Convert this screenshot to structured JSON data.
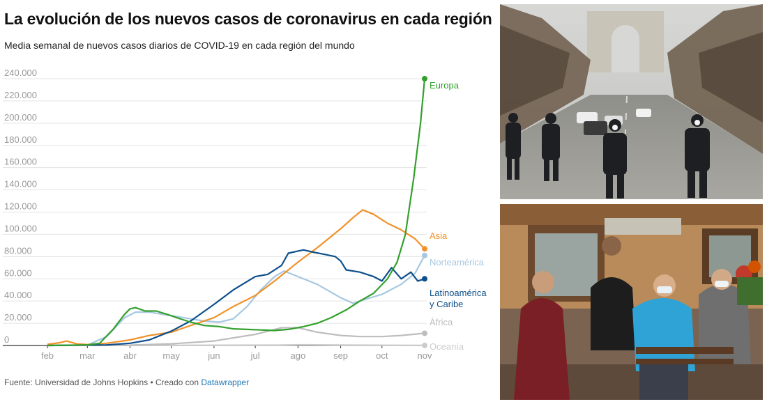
{
  "title": "La evolución de los nuevos casos de coronavirus en cada región",
  "subtitle": "Media semanal de nuevos casos diarios de COVID-19 en cada región del mundo",
  "footer": {
    "source": "Fuente: Universidad de Johns Hopkins • Creado con ",
    "tool": "Datawrapper"
  },
  "chart_data": {
    "type": "line",
    "xlabel": "",
    "ylabel": "",
    "ylim": [
      0,
      240000
    ],
    "yticks": [
      0,
      20000,
      40000,
      60000,
      80000,
      100000,
      120000,
      140000,
      160000,
      180000,
      200000,
      220000,
      240000
    ],
    "ytick_labels": [
      "0",
      "20.000",
      "40.000",
      "60.000",
      "80.000",
      "100.000",
      "120.000",
      "140.000",
      "160.000",
      "180.000",
      "200.000",
      "220.000",
      "240.000"
    ],
    "x_range": [
      "2020-02-01",
      "2020-11-01"
    ],
    "x_ticks": [
      {
        "date": "2020-02-01",
        "label": "feb"
      },
      {
        "date": "2020-03-01",
        "label": "mar"
      },
      {
        "date": "2020-04-01",
        "label": "abr"
      },
      {
        "date": "2020-05-01",
        "label": "may"
      },
      {
        "date": "2020-06-01",
        "label": "jun"
      },
      {
        "date": "2020-07-01",
        "label": "jul"
      },
      {
        "date": "2020-08-01",
        "label": "ago"
      },
      {
        "date": "2020-09-01",
        "label": "sep"
      },
      {
        "date": "2020-10-01",
        "label": "oct"
      },
      {
        "date": "2020-11-01",
        "label": "nov"
      }
    ],
    "grid": true,
    "legend": "direct labels at line ends (right)",
    "series": [
      {
        "name": "Europa",
        "color": "#33a02c",
        "label_lines": [
          "Europa"
        ],
        "points": [
          [
            "2020-02-01",
            0
          ],
          [
            "2020-03-01",
            500
          ],
          [
            "2020-03-10",
            2000
          ],
          [
            "2020-03-20",
            15000
          ],
          [
            "2020-03-28",
            28000
          ],
          [
            "2020-04-01",
            33000
          ],
          [
            "2020-04-05",
            34000
          ],
          [
            "2020-04-12",
            31000
          ],
          [
            "2020-04-20",
            31000
          ],
          [
            "2020-04-28",
            28000
          ],
          [
            "2020-05-05",
            25000
          ],
          [
            "2020-05-15",
            21000
          ],
          [
            "2020-05-25",
            18000
          ],
          [
            "2020-06-05",
            17000
          ],
          [
            "2020-06-15",
            15000
          ],
          [
            "2020-06-25",
            14500
          ],
          [
            "2020-07-05",
            14000
          ],
          [
            "2020-07-15",
            13500
          ],
          [
            "2020-07-25",
            14500
          ],
          [
            "2020-08-05",
            17000
          ],
          [
            "2020-08-15",
            20000
          ],
          [
            "2020-08-25",
            25000
          ],
          [
            "2020-09-05",
            32000
          ],
          [
            "2020-09-15",
            40000
          ],
          [
            "2020-09-25",
            47000
          ],
          [
            "2020-10-05",
            60000
          ],
          [
            "2020-10-12",
            75000
          ],
          [
            "2020-10-18",
            100000
          ],
          [
            "2020-10-24",
            150000
          ],
          [
            "2020-10-29",
            200000
          ],
          [
            "2020-11-01",
            240000
          ]
        ]
      },
      {
        "name": "Asia",
        "color": "#f0922b",
        "label_lines": [
          "Asia"
        ],
        "points": [
          [
            "2020-02-01",
            1000
          ],
          [
            "2020-02-10",
            2500
          ],
          [
            "2020-02-15",
            4000
          ],
          [
            "2020-02-22",
            1500
          ],
          [
            "2020-03-01",
            800
          ],
          [
            "2020-03-15",
            2000
          ],
          [
            "2020-04-01",
            5000
          ],
          [
            "2020-04-15",
            9000
          ],
          [
            "2020-05-01",
            12000
          ],
          [
            "2020-05-15",
            18000
          ],
          [
            "2020-06-01",
            25000
          ],
          [
            "2020-06-15",
            35000
          ],
          [
            "2020-07-01",
            45000
          ],
          [
            "2020-07-15",
            58000
          ],
          [
            "2020-08-01",
            75000
          ],
          [
            "2020-08-15",
            88000
          ],
          [
            "2020-09-01",
            105000
          ],
          [
            "2020-09-10",
            115000
          ],
          [
            "2020-09-17",
            122000
          ],
          [
            "2020-09-25",
            118000
          ],
          [
            "2020-10-05",
            110000
          ],
          [
            "2020-10-15",
            104000
          ],
          [
            "2020-10-25",
            96000
          ],
          [
            "2020-11-01",
            87000
          ]
        ]
      },
      {
        "name": "Norteamérica",
        "color": "#a6c8e0",
        "label_lines": [
          "Norteamérica"
        ],
        "points": [
          [
            "2020-02-01",
            0
          ],
          [
            "2020-03-01",
            300
          ],
          [
            "2020-03-15",
            8000
          ],
          [
            "2020-03-28",
            25000
          ],
          [
            "2020-04-05",
            30000
          ],
          [
            "2020-04-15",
            30000
          ],
          [
            "2020-04-25",
            28000
          ],
          [
            "2020-05-05",
            26000
          ],
          [
            "2020-05-15",
            24000
          ],
          [
            "2020-05-25",
            22000
          ],
          [
            "2020-06-05",
            21000
          ],
          [
            "2020-06-15",
            24000
          ],
          [
            "2020-06-25",
            35000
          ],
          [
            "2020-07-05",
            50000
          ],
          [
            "2020-07-15",
            62000
          ],
          [
            "2020-07-22",
            67000
          ],
          [
            "2020-08-01",
            62000
          ],
          [
            "2020-08-15",
            55000
          ],
          [
            "2020-09-01",
            43000
          ],
          [
            "2020-09-10",
            38000
          ],
          [
            "2020-09-20",
            42000
          ],
          [
            "2020-10-01",
            46000
          ],
          [
            "2020-10-15",
            55000
          ],
          [
            "2020-10-25",
            65000
          ],
          [
            "2020-11-01",
            81000
          ]
        ]
      },
      {
        "name": "Latinoamérica y Caribe",
        "color": "#0d4f8b",
        "label_lines": [
          "Latinoamérica",
          "y Caribe"
        ],
        "points": [
          [
            "2020-02-01",
            0
          ],
          [
            "2020-03-15",
            500
          ],
          [
            "2020-04-01",
            2000
          ],
          [
            "2020-04-15",
            5000
          ],
          [
            "2020-05-01",
            13000
          ],
          [
            "2020-05-15",
            22000
          ],
          [
            "2020-06-01",
            37000
          ],
          [
            "2020-06-15",
            50000
          ],
          [
            "2020-07-01",
            62000
          ],
          [
            "2020-07-10",
            64000
          ],
          [
            "2020-07-20",
            72000
          ],
          [
            "2020-07-25",
            83000
          ],
          [
            "2020-08-01",
            85000
          ],
          [
            "2020-08-05",
            86000
          ],
          [
            "2020-08-12",
            84000
          ],
          [
            "2020-08-20",
            82000
          ],
          [
            "2020-08-28",
            80000
          ],
          [
            "2020-09-01",
            76000
          ],
          [
            "2020-09-05",
            68000
          ],
          [
            "2020-09-15",
            66000
          ],
          [
            "2020-09-25",
            62000
          ],
          [
            "2020-10-01",
            58000
          ],
          [
            "2020-10-08",
            70000
          ],
          [
            "2020-10-15",
            60000
          ],
          [
            "2020-10-22",
            66000
          ],
          [
            "2020-10-27",
            58000
          ],
          [
            "2020-11-01",
            60000
          ]
        ]
      },
      {
        "name": "África",
        "color": "#bdbdbd",
        "label_lines": [
          "África"
        ],
        "points": [
          [
            "2020-02-01",
            0
          ],
          [
            "2020-04-01",
            300
          ],
          [
            "2020-05-01",
            1500
          ],
          [
            "2020-06-01",
            4000
          ],
          [
            "2020-07-01",
            10000
          ],
          [
            "2020-07-20",
            16000
          ],
          [
            "2020-08-01",
            16000
          ],
          [
            "2020-08-15",
            12000
          ],
          [
            "2020-09-01",
            9000
          ],
          [
            "2020-09-15",
            8000
          ],
          [
            "2020-10-01",
            8000
          ],
          [
            "2020-10-15",
            9000
          ],
          [
            "2020-11-01",
            11000
          ]
        ]
      },
      {
        "name": "Oceanía",
        "color": "#cccccc",
        "label_lines": [
          "Oceanía"
        ],
        "points": [
          [
            "2020-02-01",
            0
          ],
          [
            "2020-07-15",
            300
          ],
          [
            "2020-08-05",
            600
          ],
          [
            "2020-09-01",
            400
          ],
          [
            "2020-11-01",
            100
          ]
        ]
      }
    ]
  }
}
